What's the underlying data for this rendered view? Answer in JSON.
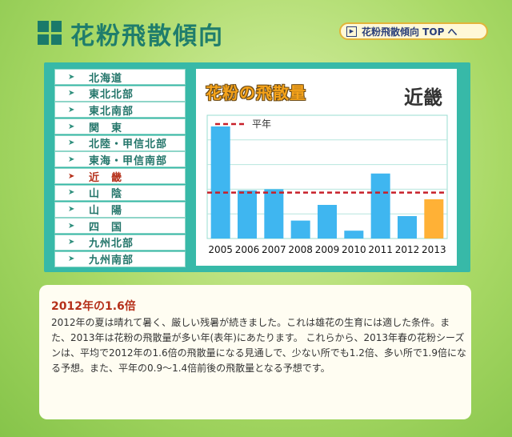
{
  "header": {
    "title": "花粉飛散傾向",
    "top_link": "花粉飛散傾向 TOP へ"
  },
  "sidebar": {
    "items": [
      {
        "label": "北海道",
        "active": false
      },
      {
        "label": "東北北部",
        "active": false
      },
      {
        "label": "東北南部",
        "active": false
      },
      {
        "label": "関　東",
        "active": false
      },
      {
        "label": "北陸・甲信北部",
        "active": false
      },
      {
        "label": "東海・甲信南部",
        "active": false
      },
      {
        "label": "近　畿",
        "active": true
      },
      {
        "label": "山　陰",
        "active": false
      },
      {
        "label": "山　陽",
        "active": false
      },
      {
        "label": "四　国",
        "active": false
      },
      {
        "label": "九州北部",
        "active": false
      },
      {
        "label": "九州南部",
        "active": false
      }
    ]
  },
  "chart_panel": {
    "title": "花粉の飛散量",
    "region": "近畿"
  },
  "chart_data": {
    "type": "bar",
    "categories": [
      "2005",
      "2006",
      "2007",
      "2008",
      "2009",
      "2010",
      "2011",
      "2012",
      "2013"
    ],
    "values": [
      100,
      43,
      44,
      16,
      30,
      7,
      58,
      20,
      35
    ],
    "reference_line": {
      "label": "平年",
      "value": 41
    },
    "ylim": [
      0,
      110
    ],
    "colors": {
      "bar": "#3fb6f0",
      "highlight": "#ffb136",
      "reference": "#c8202a"
    },
    "highlight_category": "2013"
  },
  "description": {
    "title": "2012年の1.6倍",
    "body": "2012年の夏は晴れて暑く、厳しい残暑が続きました。これは雄花の生育には適した条件。また、2013年は花粉の飛散量が多い年(表年)にあたります。 これらから、2013年春の花粉シーズンは、平均で2012年の1.6倍の飛散量になる見通しで、少ない所でも1.2倍、多い所で1.9倍になる予想。また、平年の0.9〜1.4倍前後の飛散量となる予想です。"
  }
}
